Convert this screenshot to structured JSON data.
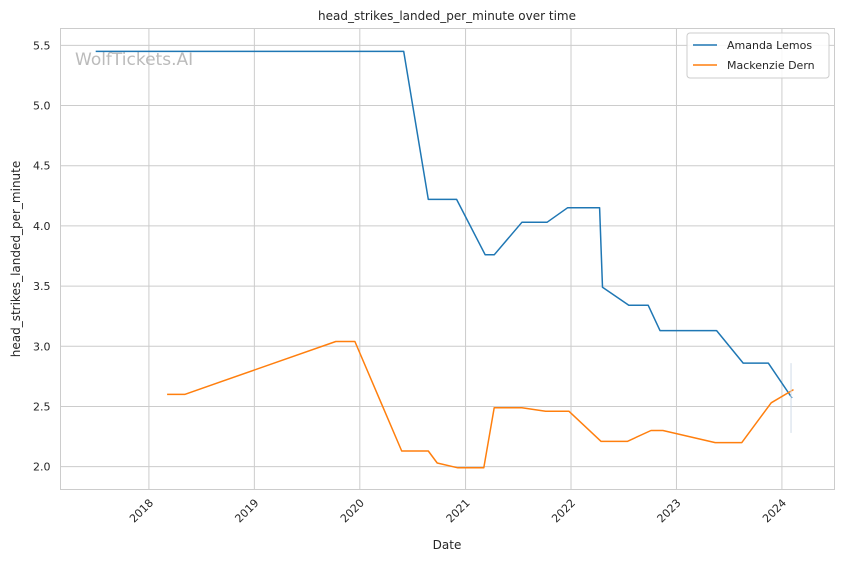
{
  "chart_data": {
    "type": "line",
    "title": "head_strikes_landed_per_minute over time",
    "xlabel": "Date",
    "ylabel": "head_strikes_landed_per_minute",
    "watermark": "WolfTickets.AI",
    "xlim": [
      "2017-03-01",
      "2024-07-01"
    ],
    "ylim": [
      1.81,
      5.64
    ],
    "x_ticks": [
      "2018-01-01",
      "2019-01-01",
      "2020-01-01",
      "2021-01-01",
      "2022-01-01",
      "2023-01-01",
      "2024-01-01"
    ],
    "x_tick_labels": [
      "2018",
      "2019",
      "2020",
      "2021",
      "2022",
      "2023",
      "2024"
    ],
    "y_ticks": [
      2.0,
      2.5,
      3.0,
      3.5,
      4.0,
      4.5,
      5.0,
      5.5
    ],
    "y_tick_labels": [
      "2.0",
      "2.5",
      "3.0",
      "3.5",
      "4.0",
      "4.5",
      "5.0",
      "5.5"
    ],
    "grid": true,
    "legend_position": "top-right",
    "series": [
      {
        "name": "Amanda Lemos",
        "color": "#1f77b4",
        "points": [
          [
            "2017-07-01",
            5.45
          ],
          [
            "2020-06-01",
            5.45
          ],
          [
            "2020-08-25",
            4.22
          ],
          [
            "2020-12-01",
            4.22
          ],
          [
            "2021-03-10",
            3.76
          ],
          [
            "2021-04-10",
            3.76
          ],
          [
            "2021-07-15",
            4.03
          ],
          [
            "2021-10-10",
            4.03
          ],
          [
            "2021-12-20",
            4.15
          ],
          [
            "2022-04-10",
            4.15
          ],
          [
            "2022-04-20",
            3.49
          ],
          [
            "2022-07-20",
            3.34
          ],
          [
            "2022-09-25",
            3.34
          ],
          [
            "2022-11-05",
            3.13
          ],
          [
            "2023-05-20",
            3.13
          ],
          [
            "2023-08-20",
            2.86
          ],
          [
            "2023-11-15",
            2.86
          ],
          [
            "2024-02-05",
            2.57
          ]
        ]
      },
      {
        "name": "Mackenzie Dern",
        "color": "#ff7f0e",
        "points": [
          [
            "2018-03-05",
            2.6
          ],
          [
            "2018-05-05",
            2.6
          ],
          [
            "2019-10-10",
            3.04
          ],
          [
            "2019-12-15",
            3.04
          ],
          [
            "2020-05-25",
            2.13
          ],
          [
            "2020-08-25",
            2.13
          ],
          [
            "2020-09-25",
            2.03
          ],
          [
            "2020-12-05",
            1.99
          ],
          [
            "2021-03-05",
            1.99
          ],
          [
            "2021-04-10",
            2.49
          ],
          [
            "2021-07-15",
            2.49
          ],
          [
            "2021-10-05",
            2.46
          ],
          [
            "2021-12-25",
            2.46
          ],
          [
            "2022-04-15",
            2.21
          ],
          [
            "2022-07-15",
            2.21
          ],
          [
            "2022-10-05",
            2.3
          ],
          [
            "2022-11-15",
            2.3
          ],
          [
            "2023-05-15",
            2.2
          ],
          [
            "2023-08-15",
            2.2
          ],
          [
            "2023-11-25",
            2.53
          ],
          [
            "2024-02-10",
            2.64
          ]
        ]
      }
    ]
  }
}
